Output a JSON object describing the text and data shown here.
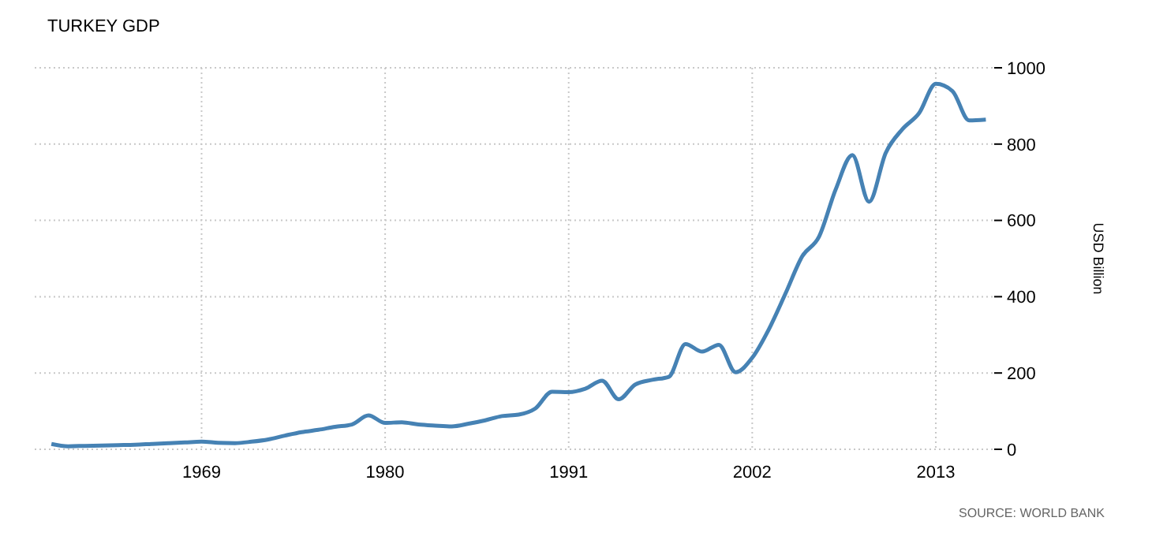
{
  "chart_data": {
    "type": "line",
    "title": "TURKEY GDP",
    "ylabel": "USD Billion",
    "annotations": [
      "SOURCE: WORLD BANK"
    ],
    "x": [
      1960,
      1961,
      1962,
      1963,
      1964,
      1965,
      1966,
      1967,
      1968,
      1969,
      1970,
      1971,
      1972,
      1973,
      1974,
      1975,
      1976,
      1977,
      1978,
      1979,
      1980,
      1981,
      1982,
      1983,
      1984,
      1985,
      1986,
      1987,
      1988,
      1989,
      1990,
      1991,
      1992,
      1993,
      1994,
      1995,
      1996,
      1997,
      1998,
      1999,
      2000,
      2001,
      2002,
      2003,
      2004,
      2005,
      2006,
      2007,
      2008,
      2009,
      2010,
      2011,
      2012,
      2013,
      2014,
      2015,
      2016
    ],
    "series": [
      {
        "color": "#4682b4",
        "values": [
          14,
          8,
          9,
          10,
          11,
          12,
          14,
          16,
          18,
          20,
          17,
          16,
          20,
          26,
          36,
          45,
          51,
          59,
          65,
          89,
          69,
          71,
          65,
          62,
          60,
          67,
          76,
          87,
          91,
          107,
          151,
          150,
          159,
          180,
          131,
          170,
          182,
          190,
          276,
          256,
          274,
          202,
          240,
          315,
          409,
          506,
          557,
          681,
          771,
          649,
          777,
          839,
          881,
          958,
          939,
          862,
          864
        ]
      }
    ],
    "xlim": [
      1959,
      2016.5
    ],
    "xticks": [
      1969,
      1980,
      1991,
      2002,
      2013
    ],
    "ylim": [
      0,
      1000
    ],
    "yticks": [
      0,
      200,
      400,
      600,
      800,
      1000
    ],
    "grid": true,
    "marker": "none",
    "line_style": "solid"
  }
}
